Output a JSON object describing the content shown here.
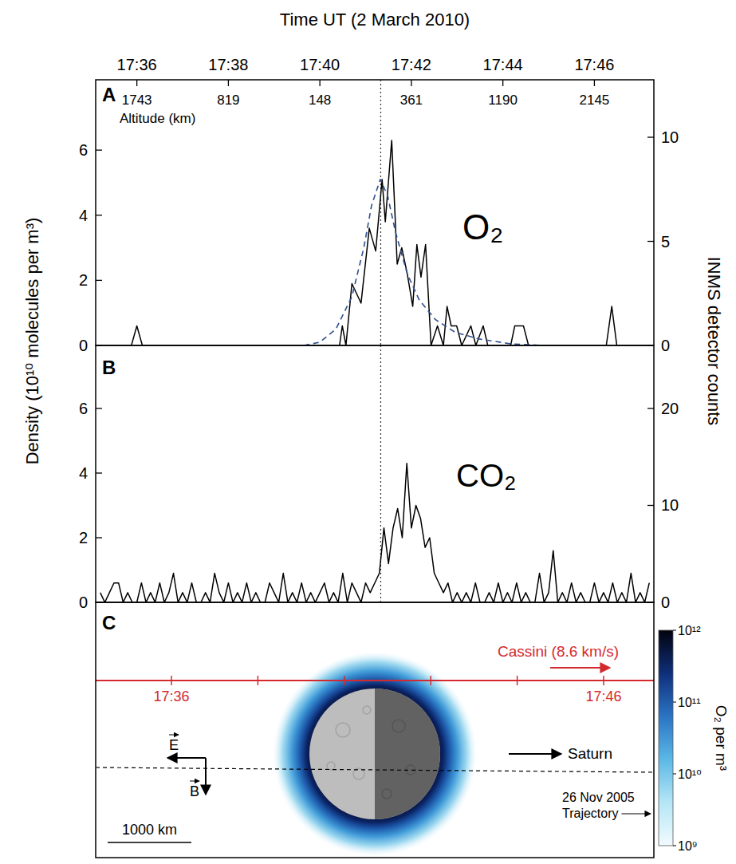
{
  "chart_data": [
    {
      "type": "line",
      "panel_label": "A",
      "annotation": "O₂",
      "x_label": "Time UT (2 March 2010)",
      "y_label": "Density (10¹⁰ molecules per m³)",
      "y2_label": "INMS detector counts",
      "altitude_label": "Altitude (km)",
      "xlim": [
        35.1,
        47.3
      ],
      "xticks": [
        {
          "value": 36,
          "label": "17:36"
        },
        {
          "value": 38,
          "label": "17:38"
        },
        {
          "value": 40,
          "label": "17:40"
        },
        {
          "value": 42,
          "label": "17:42"
        },
        {
          "value": 44,
          "label": "17:44"
        },
        {
          "value": 46,
          "label": "17:46"
        }
      ],
      "altitude_ticks": [
        {
          "value": 36,
          "label": "1743"
        },
        {
          "value": 38,
          "label": "819"
        },
        {
          "value": 40,
          "label": "148"
        },
        {
          "value": 42,
          "label": "361"
        },
        {
          "value": 44,
          "label": "1190"
        },
        {
          "value": 46,
          "label": "2145"
        }
      ],
      "ylim": [
        0,
        8.16
      ],
      "yticks": [
        0,
        2,
        4,
        6
      ],
      "y2lim": [
        0,
        12.76
      ],
      "y2ticks": [
        0,
        5,
        10
      ],
      "closest_approach": 41.33,
      "series": [
        {
          "color": "#000000",
          "line_style": "solid",
          "x": [
            35.13,
            35.88,
            36.0,
            36.12,
            40.43,
            40.49,
            40.57,
            40.7,
            40.9,
            41.08,
            41.22,
            41.36,
            41.43,
            41.57,
            41.69,
            41.79,
            41.91,
            42.03,
            42.12,
            42.21,
            42.31,
            42.43,
            42.57,
            42.7,
            42.78,
            42.87,
            42.99,
            43.1,
            43.3,
            43.41,
            43.57,
            43.67,
            44.17,
            44.26,
            44.45,
            44.56,
            46.26,
            46.38,
            46.49,
            47.3
          ],
          "values": [
            0,
            0,
            0.6,
            0,
            0,
            0.6,
            0,
            1.9,
            1.3,
            3.6,
            2.9,
            5.1,
            3.8,
            6.3,
            2.5,
            3.0,
            2.2,
            1.2,
            3.1,
            2.1,
            3.1,
            0,
            0.6,
            0,
            1.2,
            0.6,
            0.6,
            0,
            0.6,
            0,
            0.6,
            0,
            0,
            0.6,
            0.6,
            0,
            0,
            1.2,
            0,
            0
          ]
        },
        {
          "color": "#2f4f8f",
          "line_style": "dashed",
          "x": [
            39.65,
            40.0,
            40.35,
            40.7,
            40.96,
            41.13,
            41.32,
            41.48,
            41.65,
            41.91,
            42.17,
            42.52,
            42.96,
            43.48,
            44.17,
            44.87
          ],
          "values": [
            0,
            0.1,
            0.5,
            1.5,
            3.0,
            4.3,
            5.1,
            4.6,
            3.5,
            2.2,
            1.4,
            0.8,
            0.4,
            0.2,
            0.05,
            0
          ]
        }
      ]
    },
    {
      "type": "line",
      "panel_label": "B",
      "annotation": "CO₂",
      "xlim": [
        35.1,
        47.3
      ],
      "ylim": [
        0,
        7.95
      ],
      "yticks": [
        0,
        2,
        4,
        6
      ],
      "y2lim": [
        0,
        26.5
      ],
      "y2ticks": [
        0,
        10,
        20
      ],
      "closest_approach": 41.33,
      "series": [
        {
          "color": "#000000",
          "line_style": "solid",
          "x": [
            35.2,
            35.3,
            35.4,
            35.5,
            35.6,
            35.7,
            35.8,
            35.9,
            36.0,
            36.1,
            36.2,
            36.3,
            36.4,
            36.5,
            36.6,
            36.7,
            36.8,
            36.9,
            37.0,
            37.1,
            37.2,
            37.3,
            37.4,
            37.5,
            37.6,
            37.7,
            37.8,
            37.9,
            38.0,
            38.1,
            38.2,
            38.3,
            38.4,
            38.5,
            38.6,
            38.7,
            38.8,
            38.9,
            39.0,
            39.1,
            39.2,
            39.3,
            39.4,
            39.5,
            39.6,
            39.7,
            39.8,
            39.9,
            40.0,
            40.1,
            40.2,
            40.3,
            40.4,
            40.5,
            40.6,
            40.7,
            40.8,
            40.9,
            41.0,
            41.1,
            41.2,
            41.3,
            41.4,
            41.5,
            41.6,
            41.7,
            41.8,
            41.9,
            42.0,
            42.1,
            42.2,
            42.3,
            42.4,
            42.5,
            42.6,
            42.7,
            42.8,
            42.9,
            43.0,
            43.1,
            43.2,
            43.3,
            43.4,
            43.5,
            43.6,
            43.7,
            43.8,
            43.9,
            44.0,
            44.1,
            44.2,
            44.3,
            44.4,
            44.5,
            44.6,
            44.7,
            44.8,
            44.9,
            45.0,
            45.1,
            45.2,
            45.3,
            45.4,
            45.5,
            45.6,
            45.7,
            45.8,
            45.9,
            46.0,
            46.1,
            46.2,
            46.3,
            46.4,
            46.5,
            46.6,
            46.7,
            46.8,
            46.9,
            47.0,
            47.1,
            47.2
          ],
          "values": [
            0.3,
            0,
            0.3,
            0.6,
            0.6,
            0,
            0.3,
            0,
            0,
            0.6,
            0,
            0.3,
            0,
            0.6,
            0,
            0.3,
            0.9,
            0,
            0.3,
            0,
            0.6,
            0,
            0,
            0.3,
            0,
            0.9,
            0.3,
            0,
            0.6,
            0,
            0.3,
            0,
            0.6,
            0,
            0.3,
            0,
            0,
            0.6,
            0.3,
            0,
            0.9,
            0,
            0.3,
            0,
            0.6,
            0,
            0.3,
            0,
            0.3,
            0.6,
            0,
            0.3,
            0,
            0.9,
            0,
            0.6,
            0.3,
            0,
            0.6,
            0.3,
            0.6,
            0.9,
            2.3,
            1.2,
            2.3,
            2.9,
            2.0,
            4.3,
            2.3,
            3.0,
            2.6,
            1.7,
            2.0,
            0.9,
            0.6,
            0.3,
            0.6,
            0,
            0.3,
            0,
            0.3,
            0,
            0.6,
            0,
            0,
            0.3,
            0,
            0.6,
            0,
            0.3,
            0,
            0.6,
            0,
            0.3,
            0,
            0,
            0.9,
            0,
            0.3,
            1.6,
            0,
            0.3,
            0,
            0.6,
            0,
            0.3,
            0,
            0,
            0.6,
            0,
            0.3,
            0,
            0.6,
            0,
            0.3,
            0,
            0.9,
            0,
            0.3,
            0,
            0.6
          ]
        }
      ]
    },
    {
      "type": "map",
      "panel_label": "C",
      "color": "#d42a2f",
      "trajectory_label": "Cassini (8.6 km/s)",
      "trajectory_ticks": [
        36,
        38,
        40,
        42,
        44,
        46
      ],
      "trajectory_labels": [
        {
          "value": 36,
          "label": "17:36"
        },
        {
          "value": 46,
          "label": "17:46"
        }
      ],
      "field_labels": [
        "E",
        "B"
      ],
      "direction_label": "Saturn",
      "old_trajectory_label": "26 Nov 2005 Trajectory",
      "scale_bar": {
        "value": 1000,
        "label": "1000 km"
      },
      "log": true,
      "colorbar": {
        "label": "O₂ per m³",
        "range": [
          1000000000,
          1000000000000
        ],
        "ticks": [
          {
            "value": 1000000000,
            "label": "10⁹"
          },
          {
            "value": 10000000000,
            "label": "10¹⁰"
          },
          {
            "value": 100000000000,
            "label": "10¹¹"
          },
          {
            "value": 1000000000000,
            "label": "10¹²"
          }
        ]
      }
    }
  ]
}
